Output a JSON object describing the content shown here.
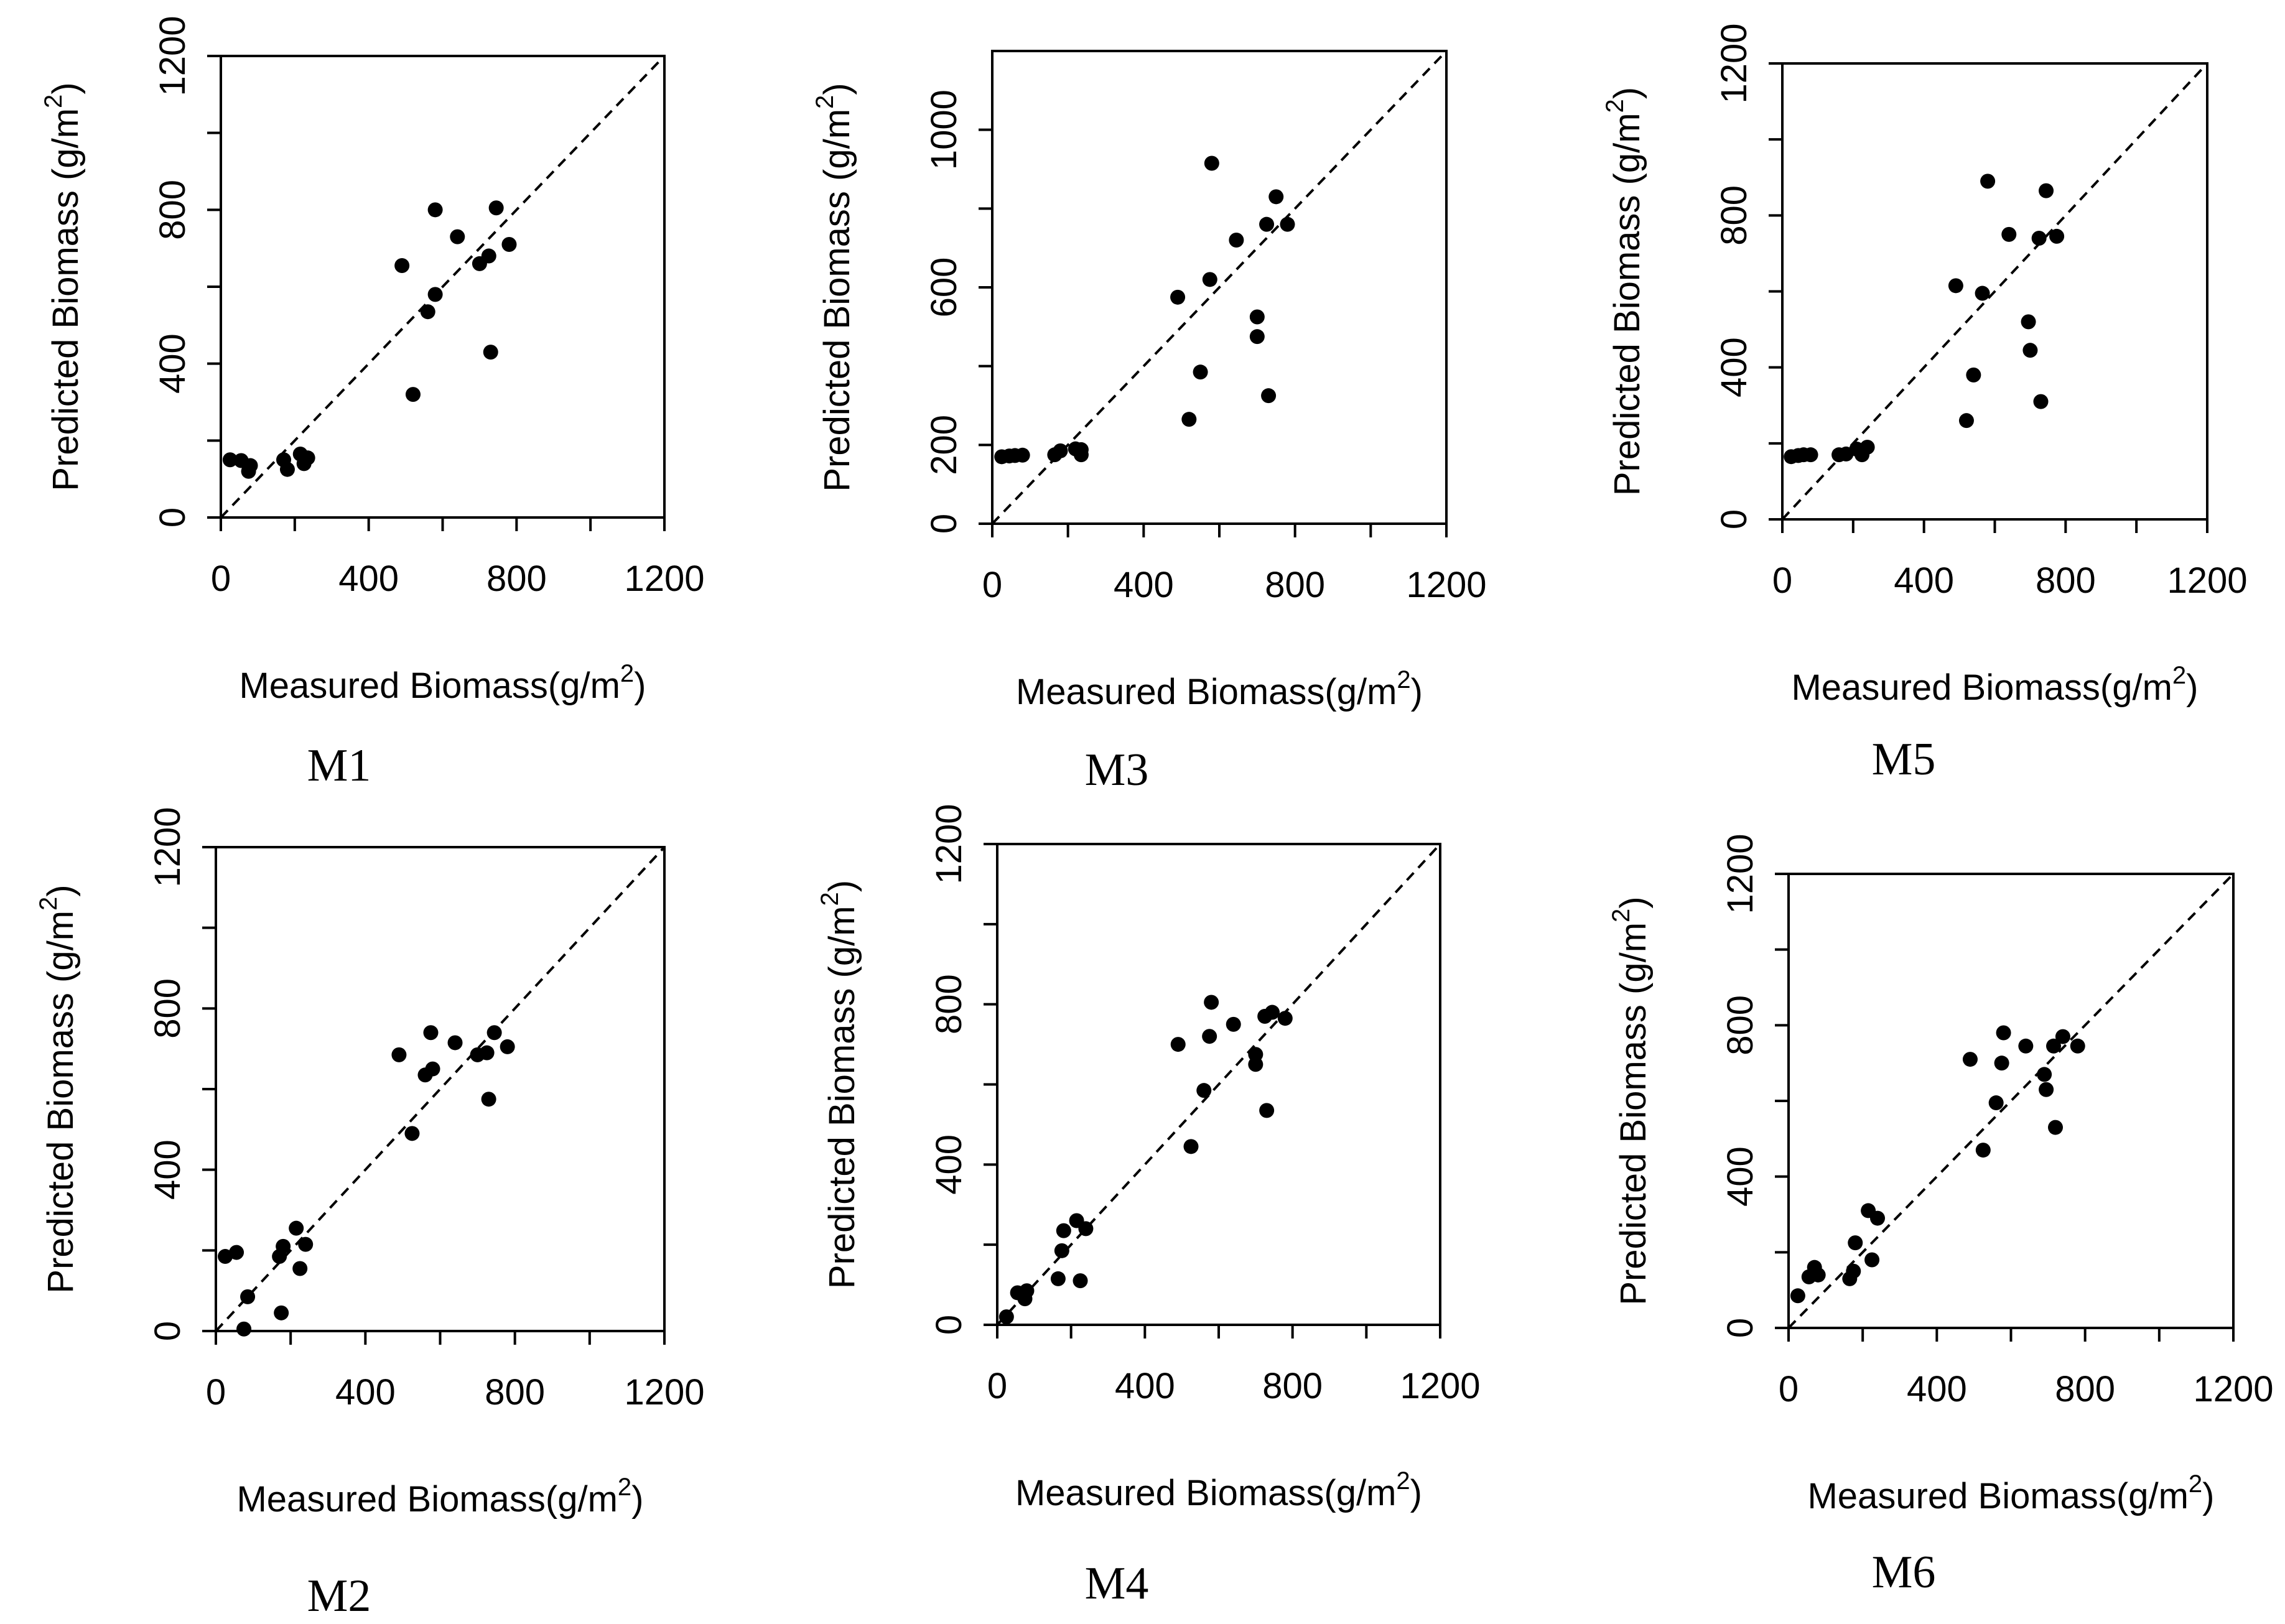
{
  "chart_data": [
    {
      "type": "scatter",
      "panel_label": "M1",
      "xlabel": "Measured Biomass(g/m",
      "xlabel_sup": "2",
      "xlabel_end": ")",
      "ylabel": "Predicted Biomass (g/m",
      "ylabel_sup": "2",
      "ylabel_end": ")",
      "xlim": [
        0,
        1200
      ],
      "ylim": [
        0,
        1200
      ],
      "xticks": [
        0,
        400,
        800,
        1200
      ],
      "yticks": [
        0,
        400,
        800,
        1200
      ],
      "reference_line": "1:1 dashed",
      "points": [
        {
          "x": 25,
          "y": 150
        },
        {
          "x": 55,
          "y": 148
        },
        {
          "x": 75,
          "y": 120
        },
        {
          "x": 80,
          "y": 135
        },
        {
          "x": 170,
          "y": 150
        },
        {
          "x": 180,
          "y": 125
        },
        {
          "x": 215,
          "y": 165
        },
        {
          "x": 225,
          "y": 140
        },
        {
          "x": 235,
          "y": 155
        },
        {
          "x": 490,
          "y": 655
        },
        {
          "x": 520,
          "y": 320
        },
        {
          "x": 560,
          "y": 535
        },
        {
          "x": 580,
          "y": 800
        },
        {
          "x": 580,
          "y": 580
        },
        {
          "x": 640,
          "y": 730
        },
        {
          "x": 700,
          "y": 660
        },
        {
          "x": 725,
          "y": 680
        },
        {
          "x": 730,
          "y": 430
        },
        {
          "x": 745,
          "y": 805
        },
        {
          "x": 780,
          "y": 710
        }
      ]
    },
    {
      "type": "scatter",
      "panel_label": "M3",
      "xlabel": "Measured Biomass(g/m",
      "xlabel_sup": "2",
      "xlabel_end": ")",
      "ylabel": "Predicted Biomass (g/m",
      "ylabel_sup": "2",
      "ylabel_end": ")",
      "xlim": [
        0,
        1200
      ],
      "ylim": [
        0,
        1200
      ],
      "xticks": [
        0,
        400,
        800,
        1200
      ],
      "yticks": [
        0,
        200,
        600,
        1000
      ],
      "reference_line": "1:1 dashed",
      "points": [
        {
          "x": 25,
          "y": 170
        },
        {
          "x": 45,
          "y": 172
        },
        {
          "x": 60,
          "y": 173
        },
        {
          "x": 80,
          "y": 174
        },
        {
          "x": 165,
          "y": 175
        },
        {
          "x": 180,
          "y": 185
        },
        {
          "x": 220,
          "y": 190
        },
        {
          "x": 235,
          "y": 175
        },
        {
          "x": 235,
          "y": 188
        },
        {
          "x": 490,
          "y": 575
        },
        {
          "x": 520,
          "y": 265
        },
        {
          "x": 550,
          "y": 385
        },
        {
          "x": 575,
          "y": 620
        },
        {
          "x": 580,
          "y": 915
        },
        {
          "x": 645,
          "y": 720
        },
        {
          "x": 700,
          "y": 525
        },
        {
          "x": 700,
          "y": 475
        },
        {
          "x": 725,
          "y": 760
        },
        {
          "x": 730,
          "y": 325
        },
        {
          "x": 750,
          "y": 830
        },
        {
          "x": 780,
          "y": 760
        }
      ]
    },
    {
      "type": "scatter",
      "panel_label": "M5",
      "xlabel": "Measured Biomass(g/m",
      "xlabel_sup": "2",
      "xlabel_end": ")",
      "ylabel": "Predicted Biomass (g/m",
      "ylabel_sup": "2",
      "ylabel_end": ")",
      "xlim": [
        0,
        1200
      ],
      "ylim": [
        0,
        1200
      ],
      "xticks": [
        0,
        400,
        800,
        1200
      ],
      "yticks": [
        0,
        400,
        800,
        1200
      ],
      "reference_line": "1:1 dashed",
      "points": [
        {
          "x": 25,
          "y": 165
        },
        {
          "x": 45,
          "y": 168
        },
        {
          "x": 60,
          "y": 170
        },
        {
          "x": 80,
          "y": 170
        },
        {
          "x": 160,
          "y": 170
        },
        {
          "x": 180,
          "y": 172
        },
        {
          "x": 210,
          "y": 185
        },
        {
          "x": 225,
          "y": 170
        },
        {
          "x": 240,
          "y": 190
        },
        {
          "x": 490,
          "y": 615
        },
        {
          "x": 520,
          "y": 260
        },
        {
          "x": 540,
          "y": 380
        },
        {
          "x": 565,
          "y": 595
        },
        {
          "x": 580,
          "y": 890
        },
        {
          "x": 640,
          "y": 750
        },
        {
          "x": 695,
          "y": 520
        },
        {
          "x": 700,
          "y": 445
        },
        {
          "x": 725,
          "y": 740
        },
        {
          "x": 730,
          "y": 310
        },
        {
          "x": 745,
          "y": 865
        },
        {
          "x": 775,
          "y": 745
        }
      ]
    },
    {
      "type": "scatter",
      "panel_label": "M2",
      "xlabel": "Measured Biomass(g/m",
      "xlabel_sup": "2",
      "xlabel_end": ")",
      "ylabel": "Predicted Biomass (g/m",
      "ylabel_sup": "2",
      "ylabel_end": ")",
      "xlim": [
        0,
        1200
      ],
      "ylim": [
        0,
        1200
      ],
      "xticks": [
        0,
        400,
        800,
        1200
      ],
      "yticks": [
        0,
        400,
        800,
        1200
      ],
      "reference_line": "1:1 dashed",
      "points": [
        {
          "x": 25,
          "y": 185
        },
        {
          "x": 55,
          "y": 195
        },
        {
          "x": 75,
          "y": 5
        },
        {
          "x": 85,
          "y": 85
        },
        {
          "x": 170,
          "y": 185
        },
        {
          "x": 175,
          "y": 45
        },
        {
          "x": 180,
          "y": 210
        },
        {
          "x": 215,
          "y": 255
        },
        {
          "x": 225,
          "y": 155
        },
        {
          "x": 240,
          "y": 215
        },
        {
          "x": 490,
          "y": 685
        },
        {
          "x": 525,
          "y": 490
        },
        {
          "x": 560,
          "y": 635
        },
        {
          "x": 575,
          "y": 740
        },
        {
          "x": 580,
          "y": 650
        },
        {
          "x": 640,
          "y": 715
        },
        {
          "x": 700,
          "y": 685
        },
        {
          "x": 725,
          "y": 690
        },
        {
          "x": 730,
          "y": 575
        },
        {
          "x": 745,
          "y": 740
        },
        {
          "x": 780,
          "y": 705
        }
      ]
    },
    {
      "type": "scatter",
      "panel_label": "M4",
      "xlabel": "Measured Biomass(g/m",
      "xlabel_sup": "2",
      "xlabel_end": ")",
      "ylabel": "Predicted Biomass (g/m",
      "ylabel_sup": "2",
      "ylabel_end": ")",
      "xlim": [
        0,
        1200
      ],
      "ylim": [
        0,
        1200
      ],
      "xticks": [
        0,
        400,
        800,
        1200
      ],
      "yticks": [
        0,
        400,
        800,
        1200
      ],
      "reference_line": "1:1 dashed",
      "points": [
        {
          "x": 25,
          "y": 20
        },
        {
          "x": 55,
          "y": 80
        },
        {
          "x": 75,
          "y": 65
        },
        {
          "x": 80,
          "y": 85
        },
        {
          "x": 165,
          "y": 115
        },
        {
          "x": 175,
          "y": 185
        },
        {
          "x": 180,
          "y": 235
        },
        {
          "x": 215,
          "y": 260
        },
        {
          "x": 225,
          "y": 110
        },
        {
          "x": 240,
          "y": 240
        },
        {
          "x": 490,
          "y": 700
        },
        {
          "x": 525,
          "y": 445
        },
        {
          "x": 560,
          "y": 585
        },
        {
          "x": 575,
          "y": 720
        },
        {
          "x": 580,
          "y": 805
        },
        {
          "x": 640,
          "y": 750
        },
        {
          "x": 700,
          "y": 675
        },
        {
          "x": 700,
          "y": 650
        },
        {
          "x": 725,
          "y": 770
        },
        {
          "x": 730,
          "y": 535
        },
        {
          "x": 745,
          "y": 780
        },
        {
          "x": 780,
          "y": 765
        }
      ]
    },
    {
      "type": "scatter",
      "panel_label": "M6",
      "xlabel": "Measured Biomass(g/m",
      "xlabel_sup": "2",
      "xlabel_end": ")",
      "ylabel": "Predicted Biomass (g/m",
      "ylabel_sup": "2",
      "ylabel_end": ")",
      "xlim": [
        0,
        1200
      ],
      "ylim": [
        0,
        1200
      ],
      "xticks": [
        0,
        400,
        800,
        1200
      ],
      "yticks": [
        0,
        400,
        800,
        1200
      ],
      "reference_line": "1:1 dashed",
      "points": [
        {
          "x": 25,
          "y": 85
        },
        {
          "x": 55,
          "y": 135
        },
        {
          "x": 70,
          "y": 160
        },
        {
          "x": 80,
          "y": 140
        },
        {
          "x": 165,
          "y": 130
        },
        {
          "x": 175,
          "y": 150
        },
        {
          "x": 180,
          "y": 225
        },
        {
          "x": 215,
          "y": 310
        },
        {
          "x": 225,
          "y": 180
        },
        {
          "x": 240,
          "y": 290
        },
        {
          "x": 490,
          "y": 710
        },
        {
          "x": 525,
          "y": 470
        },
        {
          "x": 560,
          "y": 595
        },
        {
          "x": 575,
          "y": 700
        },
        {
          "x": 580,
          "y": 780
        },
        {
          "x": 640,
          "y": 745
        },
        {
          "x": 690,
          "y": 670
        },
        {
          "x": 695,
          "y": 630
        },
        {
          "x": 715,
          "y": 745
        },
        {
          "x": 720,
          "y": 530
        },
        {
          "x": 740,
          "y": 770
        },
        {
          "x": 780,
          "y": 745
        }
      ]
    }
  ]
}
